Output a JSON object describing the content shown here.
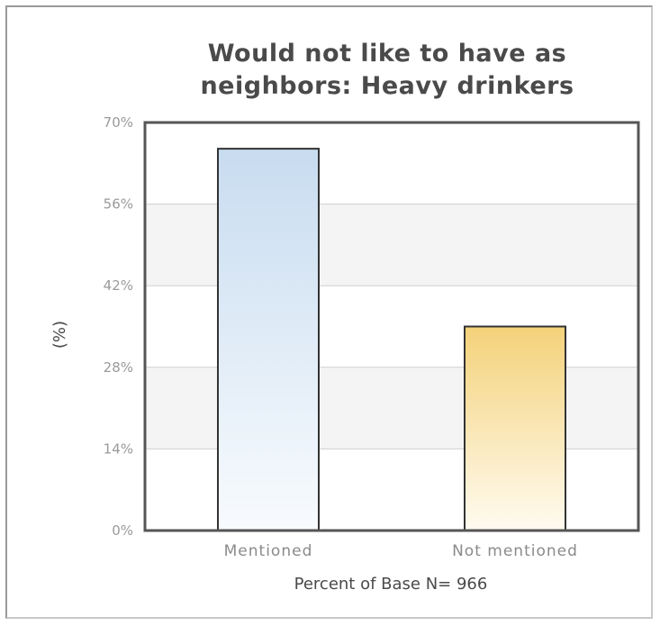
{
  "chart_data": {
    "type": "bar",
    "title": "Would not like to have as neighbors: Heavy drinkers",
    "title_lines": [
      "Would not like to have as",
      "neighbors: Heavy drinkers"
    ],
    "categories": [
      "Mentioned",
      "Not mentioned"
    ],
    "values": [
      65.5,
      35.0
    ],
    "xlabel": "Percent of Base N= 966",
    "ylabel": "(%)",
    "ylim": [
      0,
      70
    ],
    "yticks": [
      0,
      14,
      28,
      42,
      56,
      70
    ],
    "ytick_labels": [
      "0%",
      "14%",
      "28%",
      "42%",
      "56%",
      "70%"
    ],
    "grid": true,
    "bar_colors": [
      {
        "top": "#c8dcf0",
        "bottom": "#f8fbfe"
      },
      {
        "top": "#f4d27a",
        "bottom": "#fffbf0"
      }
    ]
  }
}
